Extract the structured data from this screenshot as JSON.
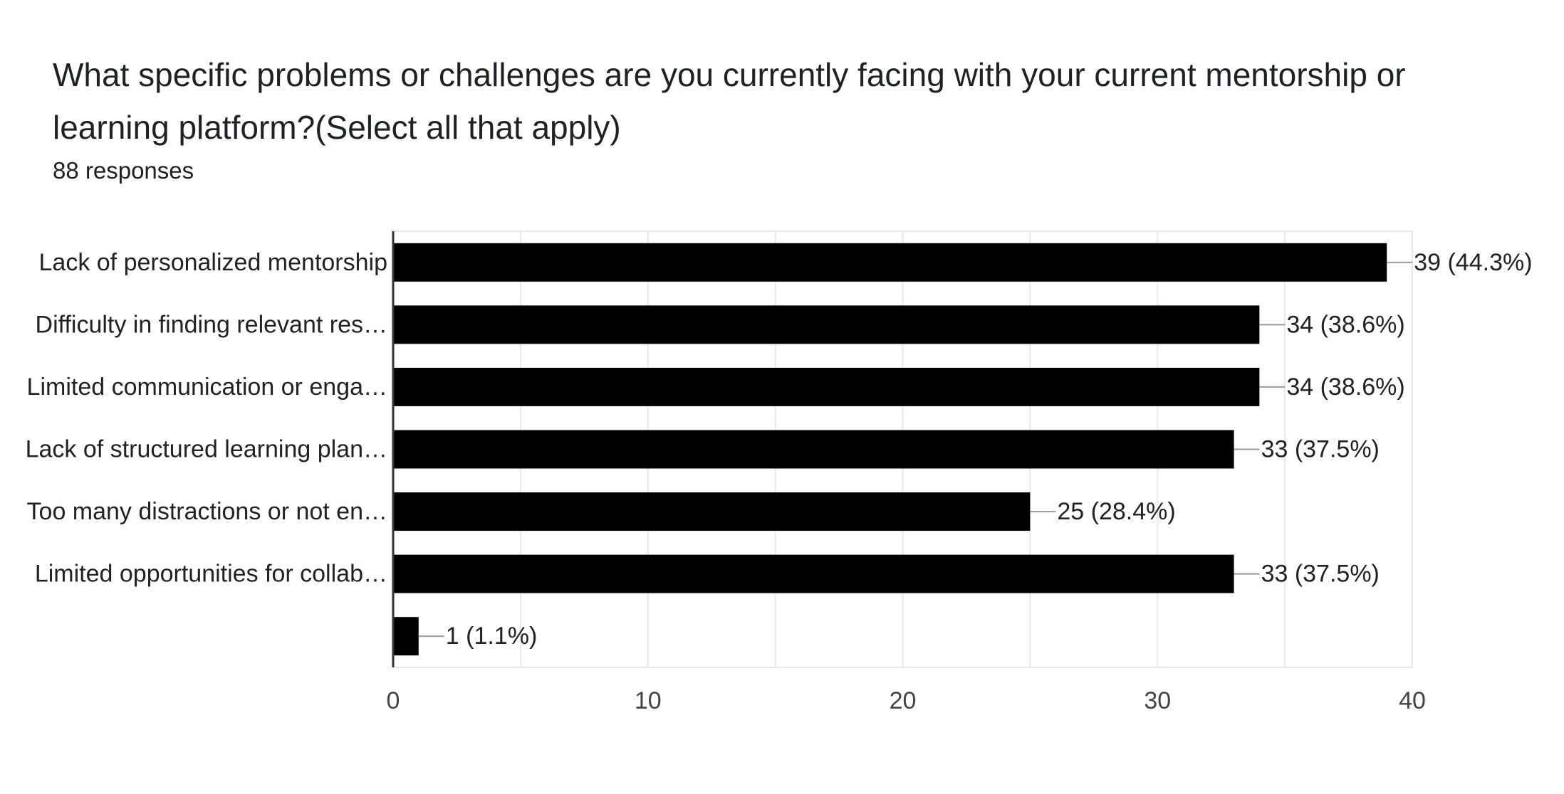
{
  "header": {
    "title": "What specific problems or challenges are you currently facing with your current mentorship or learning platform?(Select all that apply)",
    "responses": "88 responses"
  },
  "colors": {
    "bar": "#000000",
    "gridline": "#e8e8e8",
    "axis": "#333333",
    "leader": "#999999"
  },
  "chart_data": {
    "type": "bar",
    "orientation": "horizontal",
    "categories": [
      "Lack of personalized mentorship",
      "Difficulty in finding relevant res…",
      "Limited communication or enga…",
      "Lack of structured learning plan…",
      "Too many distractions or not en…",
      "Limited opportunities for collab…",
      ""
    ],
    "values": [
      39,
      34,
      34,
      33,
      25,
      33,
      1
    ],
    "data_labels": [
      "39 (44.3%)",
      "34 (38.6%)",
      "34 (38.6%)",
      "33 (37.5%)",
      "25 (28.4%)",
      "33 (37.5%)",
      "1 (1.1%)"
    ],
    "xlim": [
      0,
      40
    ],
    "xticks": [
      0,
      10,
      20,
      30,
      40
    ],
    "xtick_labels": [
      "0",
      "10",
      "20",
      "30",
      "40"
    ],
    "grid": true,
    "legend": "none"
  }
}
